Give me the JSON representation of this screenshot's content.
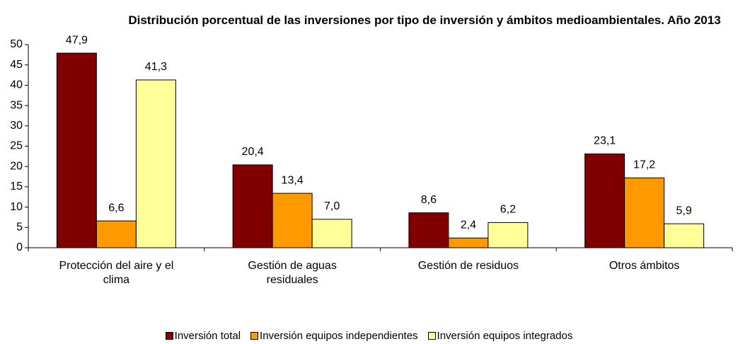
{
  "chart_data": {
    "type": "bar",
    "title": "Distribución porcentual de las inversiones por tipo de inversión y ámbitos medioambientales. Año 2013",
    "categories": [
      "Protección del aire y el clima",
      "Gestión de aguas residuales",
      "Gestión de residuos",
      "Otros ámbitos"
    ],
    "series": [
      {
        "name": "Inversión total",
        "color": "#800000",
        "values": [
          47.9,
          20.4,
          8.6,
          23.1
        ],
        "value_labels": [
          "47,9",
          "20,4",
          "8,6",
          "23,1"
        ]
      },
      {
        "name": "Inversión equipos independientes",
        "color": "#ff9900",
        "values": [
          6.6,
          13.4,
          2.4,
          17.2
        ],
        "value_labels": [
          "6,6",
          "13,4",
          "2,4",
          "17,2"
        ]
      },
      {
        "name": "Inversión equipos integrados",
        "color": "#ffff99",
        "values": [
          41.3,
          7.0,
          6.2,
          5.9
        ],
        "value_labels": [
          "41,3",
          "7,0",
          "6,2",
          "5,9"
        ]
      }
    ],
    "ylim": [
      0,
      50
    ],
    "yticks": [
      0,
      5,
      10,
      15,
      20,
      25,
      30,
      35,
      40,
      45,
      50
    ],
    "grid": false,
    "legend": "bottom"
  }
}
